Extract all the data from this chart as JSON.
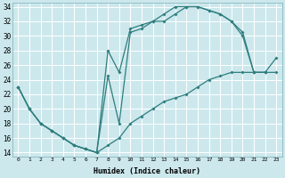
{
  "xlabel": "Humidex (Indice chaleur)",
  "bg_color": "#cce8ed",
  "line_color": "#2e7d7d",
  "grid_color": "#ffffff",
  "xlim": [
    -0.5,
    23.5
  ],
  "ylim": [
    13.5,
    34.5
  ],
  "xticks": [
    0,
    1,
    2,
    3,
    4,
    5,
    6,
    7,
    8,
    9,
    10,
    11,
    12,
    13,
    14,
    15,
    16,
    17,
    18,
    19,
    20,
    21,
    22,
    23
  ],
  "yticks": [
    14,
    16,
    18,
    20,
    22,
    24,
    26,
    28,
    30,
    32,
    34
  ],
  "curve1_x": [
    0,
    1,
    2,
    3,
    4,
    5,
    6,
    7,
    8,
    9,
    10,
    11,
    12,
    13,
    14,
    15,
    16,
    17,
    18,
    19,
    20,
    21,
    22
  ],
  "curve1_y": [
    23,
    20,
    18,
    17,
    16,
    15,
    14.5,
    14,
    24.5,
    18,
    30.5,
    31,
    32,
    32,
    33,
    34,
    34,
    33.5,
    33,
    32,
    30.5,
    25,
    25
  ],
  "curve2_x": [
    0,
    1,
    2,
    3,
    4,
    5,
    6,
    7,
    8,
    9,
    10,
    11,
    12,
    13,
    14,
    15,
    16,
    17,
    18,
    19,
    20,
    21,
    22,
    23
  ],
  "curve2_y": [
    23,
    20,
    18,
    17,
    16,
    15,
    14.5,
    14,
    28,
    25,
    31,
    31.5,
    32,
    33,
    34,
    34,
    34,
    33.5,
    33,
    32,
    30,
    25,
    25,
    27
  ],
  "curve3_x": [
    0,
    1,
    2,
    3,
    4,
    5,
    6,
    7,
    8,
    9,
    10,
    11,
    12,
    13,
    14,
    15,
    16,
    17,
    18,
    19,
    20,
    21,
    22,
    23
  ],
  "curve3_y": [
    23,
    20,
    18,
    17,
    16,
    15,
    14.5,
    14,
    15,
    16,
    18,
    19,
    20,
    21,
    21.5,
    22,
    23,
    24,
    24.5,
    25,
    25,
    25,
    25,
    25
  ]
}
